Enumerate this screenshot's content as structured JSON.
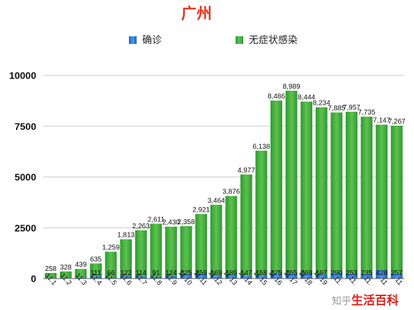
{
  "chart_data": {
    "type": "bar",
    "stacked": true,
    "title": "广州",
    "categories": [
      "11.1",
      "11.2",
      "11.3",
      "11.4",
      "11.5",
      "11.6",
      "11.7",
      "11.8",
      "11.9",
      "11.10",
      "11.11",
      "11.12",
      "11.13",
      "11.14",
      "11.15",
      "11.16",
      "11.17",
      "11.18",
      "11.19",
      "11.20",
      "11.21",
      "11.22",
      "11.23",
      "11.24"
    ],
    "category_labels": [
      "11.1",
      "11.2",
      "11.3",
      "11.4",
      "11.5",
      "11.6",
      "11.7",
      "11.8",
      "11.9",
      "11.10",
      "11.11",
      "11.12",
      "11.13",
      "11.14",
      "11.15",
      "11.16",
      "11.17",
      "11.18",
      "11.19",
      "11.",
      "11.",
      "11.",
      "11",
      "11"
    ],
    "series": [
      {
        "name": "确诊",
        "color": "#2f7fd8",
        "values": [
          20,
          23,
          35,
          111,
          66,
          122,
          114,
          91,
          124,
          225,
          259,
          169,
          189,
          147,
          158,
          275,
          255,
          269,
          197,
          290,
          253,
          235,
          428,
          257
        ],
        "labels": [
          "",
          "",
          "",
          "111",
          "66",
          "122",
          "114",
          "91",
          "124",
          "225",
          "259",
          "169",
          "189",
          "147",
          "158",
          "275",
          "255",
          "269",
          "197",
          "290",
          "253",
          "235",
          "428",
          "257"
        ]
      },
      {
        "name": "无症状感染",
        "color": "#3aa83a",
        "values": [
          258,
          328,
          439,
          635,
          1259,
          1813,
          2263,
          2611,
          2430,
          2358,
          2921,
          3464,
          3876,
          4977,
          6138,
          8486,
          8989,
          8444,
          8234,
          7885,
          7957,
          7735,
          7147,
          7267
        ],
        "labels": [
          "258",
          "328",
          "439",
          "635",
          "1,259",
          "1,813",
          "2,263",
          "2,611",
          "2,430",
          "2,358",
          "2,921",
          "3,464",
          "3,876",
          "4,977",
          "6,138",
          "8,486",
          "8,989",
          "8,444",
          "8,234",
          "7,885",
          "7,957",
          "7,735",
          "7,147",
          "7,267"
        ]
      }
    ],
    "yticks": [
      "0",
      "2500",
      "5000",
      "7500",
      "10000"
    ],
    "ylim": [
      0,
      10000
    ],
    "xlabel": "",
    "ylabel": "",
    "grid": true,
    "legend": "top"
  },
  "watermark": {
    "site": "知乎",
    "brand": "生活百科"
  }
}
